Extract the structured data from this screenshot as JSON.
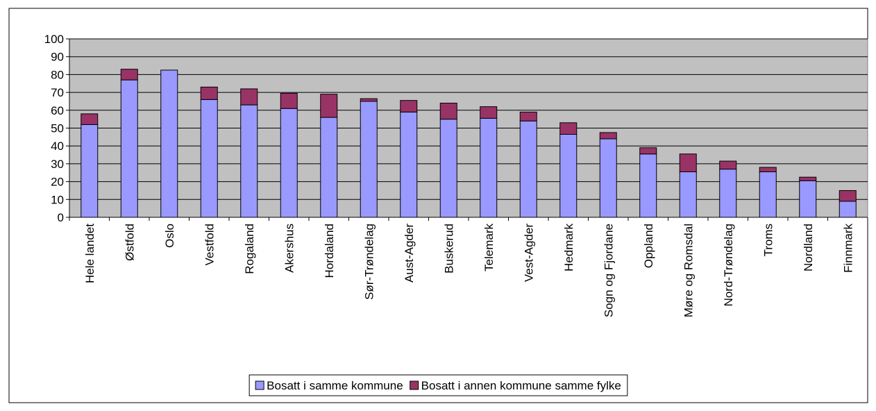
{
  "chart_data": {
    "type": "bar",
    "stacked": true,
    "categories": [
      "Hele landet",
      "Østfold",
      "Oslo",
      "Vestfold",
      "Rogaland",
      "Akershus",
      "Hordaland",
      "Sør-Trøndelag",
      "Aust-Agder",
      "Buskerud",
      "Telemark",
      "Vest-Agder",
      "Hedmark",
      "Sogn og Fjordane",
      "Oppland",
      "Møre og Romsdal",
      "Nord-Trøndelag",
      "Troms",
      "Nordland",
      "Finnmark"
    ],
    "series": [
      {
        "name": "Bosatt i samme kommune",
        "color": "#9999ff",
        "values": [
          52,
          77,
          82.5,
          66,
          63,
          61,
          56,
          65,
          59,
          55,
          55.5,
          54,
          46.5,
          44,
          35.5,
          25.5,
          27,
          25.5,
          20.5,
          9
        ]
      },
      {
        "name": "Bosatt i annen kommune samme fylke",
        "color": "#993366",
        "values": [
          6,
          6,
          0,
          7,
          9,
          8.5,
          13,
          1.5,
          6.5,
          9,
          6.5,
          5,
          6.5,
          3.5,
          3.5,
          10,
          4.5,
          2.5,
          2,
          6
        ]
      }
    ],
    "ylim": [
      0,
      100
    ],
    "yticks": [
      0,
      10,
      20,
      30,
      40,
      50,
      60,
      70,
      80,
      90,
      100
    ],
    "grid": true,
    "legend": "bottom"
  }
}
